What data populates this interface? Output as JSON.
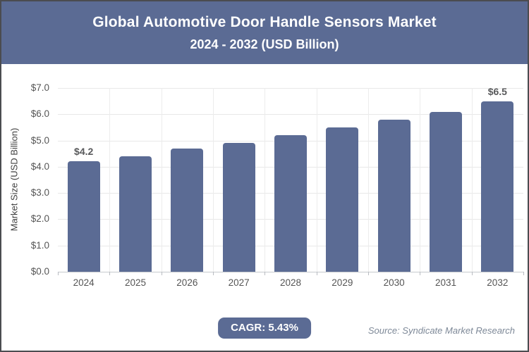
{
  "header": {
    "title_line1": "Global Automotive Door Handle Sensors Market",
    "title_line2": "2024 - 2032 (USD Billion)"
  },
  "chart_data": {
    "type": "bar",
    "title": "Global Automotive Door Handle Sensors Market 2024 - 2032 (USD Billion)",
    "categories": [
      "2024",
      "2025",
      "2026",
      "2027",
      "2028",
      "2029",
      "2030",
      "2031",
      "2032"
    ],
    "values": [
      4.2,
      4.4,
      4.7,
      4.9,
      5.2,
      5.5,
      5.8,
      6.1,
      6.5
    ],
    "point_labels": [
      "$4.2",
      "",
      "",
      "",
      "",
      "",
      "",
      "",
      "$6.5"
    ],
    "xlabel": "",
    "ylabel": "Market Size (USD Billion)",
    "ylim": [
      0,
      7
    ],
    "ytick_step": 1,
    "ytick_labels": [
      "$0.0",
      "$1.0",
      "$2.0",
      "$3.0",
      "$4.0",
      "$5.0",
      "$6.0",
      "$7.0"
    ],
    "grid": true,
    "legend": false
  },
  "footer": {
    "cagr_label": "CAGR: 5.43%",
    "source": "Source: Syndicate Market Research"
  },
  "colors": {
    "accent": "#5b6b94",
    "bar": "#5b6b94",
    "gridline": "#e8e8e8",
    "axis_line": "#c6c9ce",
    "tick_text": "#565656",
    "source_text": "#7e8998",
    "border": "#4b4c50",
    "header_text": "#ffffff"
  }
}
